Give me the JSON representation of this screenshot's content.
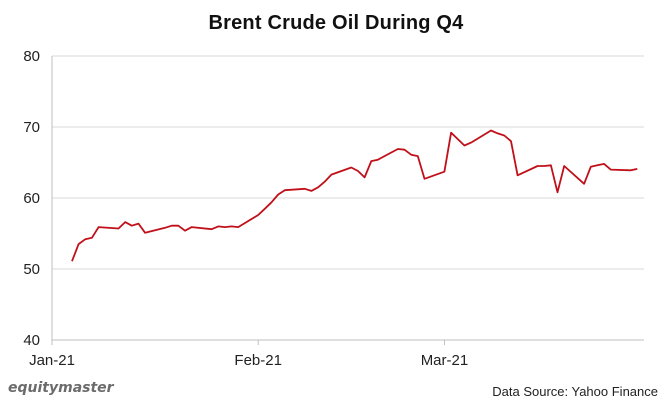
{
  "chart_data": {
    "type": "line",
    "title": "Brent Crude Oil During Q4",
    "xlabel": "",
    "ylabel": "",
    "ylim": [
      40,
      80
    ],
    "yticks": [
      40,
      50,
      60,
      70,
      80
    ],
    "xticks": [
      "Jan-21",
      "Feb-21",
      "Mar-21"
    ],
    "grid": "horizontal",
    "legend": "none",
    "line_color": "#c0101a",
    "series": [
      {
        "name": "",
        "x": [
          "2021-01-04",
          "2021-01-05",
          "2021-01-06",
          "2021-01-07",
          "2021-01-08",
          "2021-01-11",
          "2021-01-12",
          "2021-01-13",
          "2021-01-14",
          "2021-01-15",
          "2021-01-18",
          "2021-01-19",
          "2021-01-20",
          "2021-01-21",
          "2021-01-22",
          "2021-01-25",
          "2021-01-26",
          "2021-01-27",
          "2021-01-28",
          "2021-01-29",
          "2021-02-01",
          "2021-02-02",
          "2021-02-03",
          "2021-02-04",
          "2021-02-05",
          "2021-02-08",
          "2021-02-09",
          "2021-02-10",
          "2021-02-11",
          "2021-02-12",
          "2021-02-15",
          "2021-02-16",
          "2021-02-17",
          "2021-02-18",
          "2021-02-19",
          "2021-02-22",
          "2021-02-23",
          "2021-02-24",
          "2021-02-25",
          "2021-02-26",
          "2021-03-01",
          "2021-03-02",
          "2021-03-03",
          "2021-03-04",
          "2021-03-05",
          "2021-03-08",
          "2021-03-09",
          "2021-03-10",
          "2021-03-11",
          "2021-03-12",
          "2021-03-15",
          "2021-03-16",
          "2021-03-17",
          "2021-03-18",
          "2021-03-19",
          "2021-03-22",
          "2021-03-23",
          "2021-03-24",
          "2021-03-25",
          "2021-03-26",
          "2021-03-29",
          "2021-03-30"
        ],
        "values": [
          51.1,
          53.5,
          54.2,
          54.4,
          55.9,
          55.7,
          56.6,
          56.1,
          56.4,
          55.1,
          55.8,
          56.1,
          56.1,
          55.4,
          55.9,
          55.6,
          56.0,
          55.9,
          56.0,
          55.9,
          57.6,
          58.5,
          59.4,
          60.5,
          61.1,
          61.3,
          61.0,
          61.5,
          62.3,
          63.3,
          64.3,
          63.8,
          62.9,
          65.2,
          65.4,
          66.9,
          66.8,
          66.1,
          65.9,
          62.7,
          63.7,
          69.2,
          68.3,
          67.4,
          67.8,
          69.5,
          69.1,
          68.8,
          68.0,
          63.2,
          64.5,
          64.5,
          64.6,
          60.8,
          64.5,
          62.0,
          64.4,
          64.6,
          64.8,
          64.0,
          63.9,
          64.1
        ]
      }
    ]
  },
  "footer": {
    "logo_text": "equitymaster",
    "source": "Data Source: Yahoo Finance"
  }
}
